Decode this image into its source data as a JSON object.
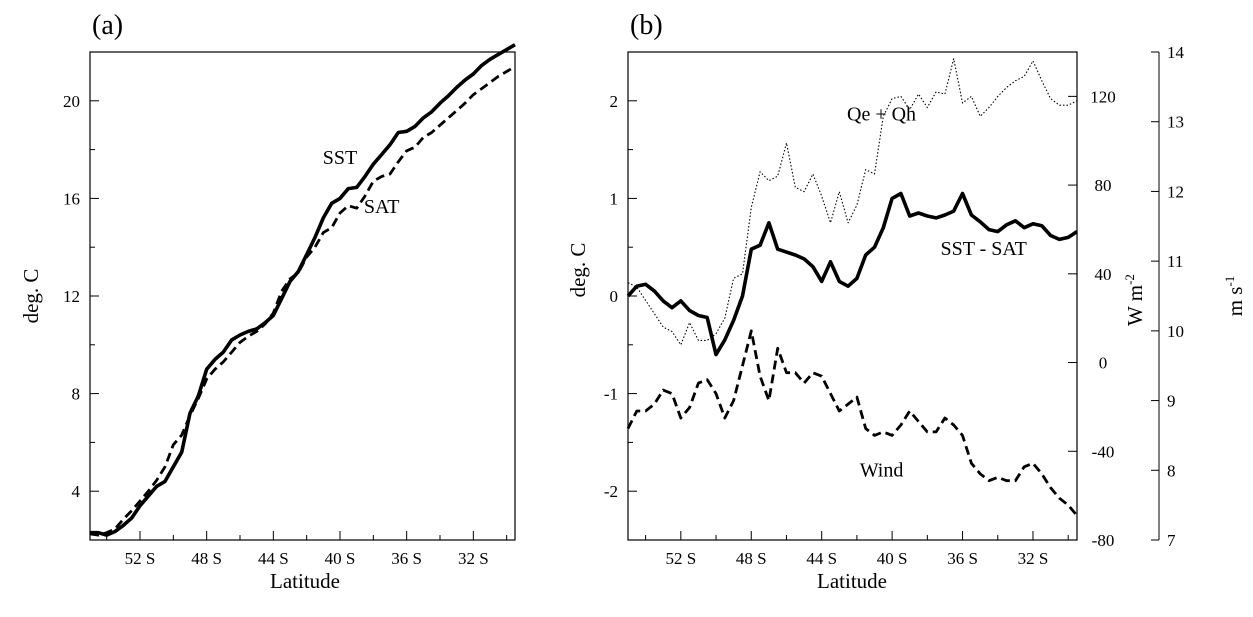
{
  "chart_data": [
    {
      "panel_label": "(a)",
      "type": "line",
      "xlabel": "Latitude",
      "ylabel": "deg. C",
      "xlim": [
        -55,
        -29.5
      ],
      "ylim": [
        2,
        22
      ],
      "x_tick_values": [
        -52,
        -48,
        -44,
        -40,
        -36,
        -32
      ],
      "x_tick_labels": [
        "52 S",
        "48 S",
        "44 S",
        "40 S",
        "36 S",
        "32 S"
      ],
      "y_tick_values": [
        4,
        8,
        12,
        16,
        20
      ],
      "y_tick_labels": [
        "4",
        "8",
        "12",
        "16",
        "20"
      ],
      "annotations": [
        {
          "text": "SST",
          "x": -40,
          "y": 17.4
        },
        {
          "text": "SAT",
          "x": -37.5,
          "y": 15.4
        }
      ],
      "x": [
        -55,
        -54.5,
        -54,
        -53.5,
        -53,
        -52.5,
        -52,
        -51.5,
        -51,
        -50.5,
        -50,
        -49.5,
        -49,
        -48.5,
        -48,
        -47.5,
        -47,
        -46.5,
        -46,
        -45.5,
        -45,
        -44.5,
        -44,
        -43.5,
        -43,
        -42.5,
        -42,
        -41.5,
        -41,
        -40.5,
        -40,
        -39.5,
        -39,
        -38.5,
        -38,
        -37.5,
        -37,
        -36.5,
        -36,
        -35.5,
        -35,
        -34.5,
        -34,
        -33.5,
        -33,
        -32.5,
        -32,
        -31.5,
        -31,
        -30.5,
        -30,
        -29.5
      ],
      "series": [
        {
          "name": "SST",
          "style": "solid-thick",
          "values": [
            2.3,
            2.3,
            2.2,
            2.35,
            2.6,
            2.9,
            3.4,
            3.8,
            4.2,
            4.4,
            5.0,
            5.6,
            7.2,
            7.9,
            9.0,
            9.4,
            9.7,
            10.2,
            10.4,
            10.55,
            10.65,
            10.9,
            11.2,
            11.9,
            12.6,
            13.0,
            13.7,
            14.4,
            15.2,
            15.8,
            16.0,
            16.4,
            16.45,
            16.9,
            17.4,
            17.8,
            18.2,
            18.7,
            18.75,
            18.95,
            19.3,
            19.55,
            19.9,
            20.2,
            20.55,
            20.85,
            21.1,
            21.45,
            21.7,
            21.9,
            22.1,
            22.3
          ]
        },
        {
          "name": "SAT",
          "style": "dashed-thick",
          "values": [
            2.25,
            2.2,
            2.3,
            2.45,
            2.85,
            3.2,
            3.6,
            4.0,
            4.45,
            5.0,
            5.9,
            6.3,
            7.1,
            7.8,
            8.6,
            9.0,
            9.3,
            9.7,
            10.1,
            10.35,
            10.55,
            10.85,
            11.3,
            12.2,
            12.7,
            12.95,
            13.6,
            14.0,
            14.6,
            14.8,
            15.4,
            15.7,
            15.6,
            16.1,
            16.7,
            16.9,
            17.0,
            17.5,
            17.95,
            18.1,
            18.5,
            18.7,
            19.0,
            19.3,
            19.6,
            19.9,
            20.25,
            20.5,
            20.75,
            21.0,
            21.2,
            21.4
          ]
        }
      ]
    },
    {
      "panel_label": "(b)",
      "type": "line",
      "xlabel": "Latitude",
      "ylabel": "deg. C",
      "ylabel_right_1": "W m",
      "ylabel_right_1_exp": "-2",
      "ylabel_right_2": "m s",
      "ylabel_right_2_exp": "-1",
      "xlim": [
        -55,
        -29.5
      ],
      "ylim": [
        -2.5,
        2.5
      ],
      "ylim_right_1": [
        -80,
        140
      ],
      "ylim_right_2": [
        7,
        14
      ],
      "x_tick_values": [
        -52,
        -48,
        -44,
        -40,
        -36,
        -32
      ],
      "x_tick_labels": [
        "52 S",
        "48 S",
        "44 S",
        "40 S",
        "36 S",
        "32 S"
      ],
      "y_tick_values": [
        -2,
        -1,
        0,
        1,
        2
      ],
      "y_tick_labels": [
        "-2",
        "-1",
        "0",
        "1",
        "2"
      ],
      "y_right_1_tick_values": [
        -80,
        -40,
        0,
        40,
        80,
        120
      ],
      "y_right_1_tick_labels": [
        "-80",
        "-40",
        "0",
        "40",
        "80",
        "120"
      ],
      "y_right_2_tick_values": [
        7,
        8,
        9,
        10,
        11,
        12,
        13,
        14
      ],
      "y_right_2_tick_labels": [
        "7",
        "8",
        "9",
        "10",
        "11",
        "12",
        "13",
        "14"
      ],
      "annotations": [
        {
          "text": "Qe + Qh",
          "x": -40.6,
          "y": 1.8
        },
        {
          "text": "SST - SAT",
          "x": -34.8,
          "y": 0.42
        },
        {
          "text": "Wind",
          "x": -40.6,
          "y": -1.85
        }
      ],
      "x": [
        -55,
        -54.5,
        -54,
        -53.5,
        -53,
        -52.5,
        -52,
        -51.5,
        -51,
        -50.5,
        -50,
        -49.5,
        -49,
        -48.5,
        -48,
        -47.5,
        -47,
        -46.5,
        -46,
        -45.5,
        -45,
        -44.5,
        -44,
        -43.5,
        -43,
        -42.5,
        -42,
        -41.5,
        -41,
        -40.5,
        -40,
        -39.5,
        -39,
        -38.5,
        -38,
        -37.5,
        -37,
        -36.5,
        -36,
        -35.5,
        -35,
        -34.5,
        -34,
        -33.5,
        -33,
        -32.5,
        -32,
        -31.5,
        -31,
        -30.5,
        -30,
        -29.5
      ],
      "series": [
        {
          "name": "SST - SAT",
          "axis": "left",
          "unit": "deg. C",
          "style": "solid-thick",
          "values": [
            0.0,
            0.1,
            0.12,
            0.05,
            -0.05,
            -0.12,
            -0.05,
            -0.15,
            -0.2,
            -0.22,
            -0.6,
            -0.45,
            -0.25,
            0.0,
            0.48,
            0.52,
            0.75,
            0.48,
            0.45,
            0.42,
            0.38,
            0.3,
            0.15,
            0.35,
            0.15,
            0.1,
            0.18,
            0.42,
            0.5,
            0.7,
            1.0,
            1.05,
            0.82,
            0.85,
            0.82,
            0.8,
            0.83,
            0.87,
            1.05,
            0.83,
            0.76,
            0.68,
            0.66,
            0.73,
            0.77,
            0.7,
            0.74,
            0.72,
            0.62,
            0.58,
            0.6,
            0.66
          ]
        },
        {
          "name": "Qe + Qh",
          "axis": "right_1",
          "unit": "W m-2",
          "style": "dotted-thin",
          "values": [
            36,
            34,
            28,
            22,
            16,
            14,
            8,
            18,
            10,
            10,
            13,
            20,
            38,
            40,
            70,
            86,
            82,
            84,
            99,
            79,
            77,
            85,
            75,
            63,
            77,
            63,
            71,
            87,
            85,
            111,
            119,
            120,
            114,
            121,
            115,
            122,
            121,
            137,
            117,
            120,
            111,
            115,
            120,
            124,
            127,
            129,
            136,
            127,
            119,
            116,
            116,
            118
          ]
        },
        {
          "name": "Wind",
          "axis": "right_2",
          "unit": "m s-1",
          "style": "dashed-thick",
          "values": [
            8.6,
            8.85,
            8.85,
            8.95,
            9.15,
            9.1,
            8.75,
            8.9,
            9.25,
            9.3,
            9.1,
            8.75,
            9.0,
            9.5,
            10.0,
            9.35,
            9.0,
            9.75,
            9.4,
            9.4,
            9.25,
            9.4,
            9.35,
            9.1,
            8.85,
            8.95,
            9.05,
            8.6,
            8.5,
            8.55,
            8.5,
            8.65,
            8.85,
            8.7,
            8.55,
            8.55,
            8.75,
            8.65,
            8.5,
            8.1,
            7.95,
            7.85,
            7.9,
            7.85,
            7.85,
            8.05,
            8.1,
            7.95,
            7.75,
            7.6,
            7.5,
            7.35
          ]
        }
      ]
    }
  ]
}
